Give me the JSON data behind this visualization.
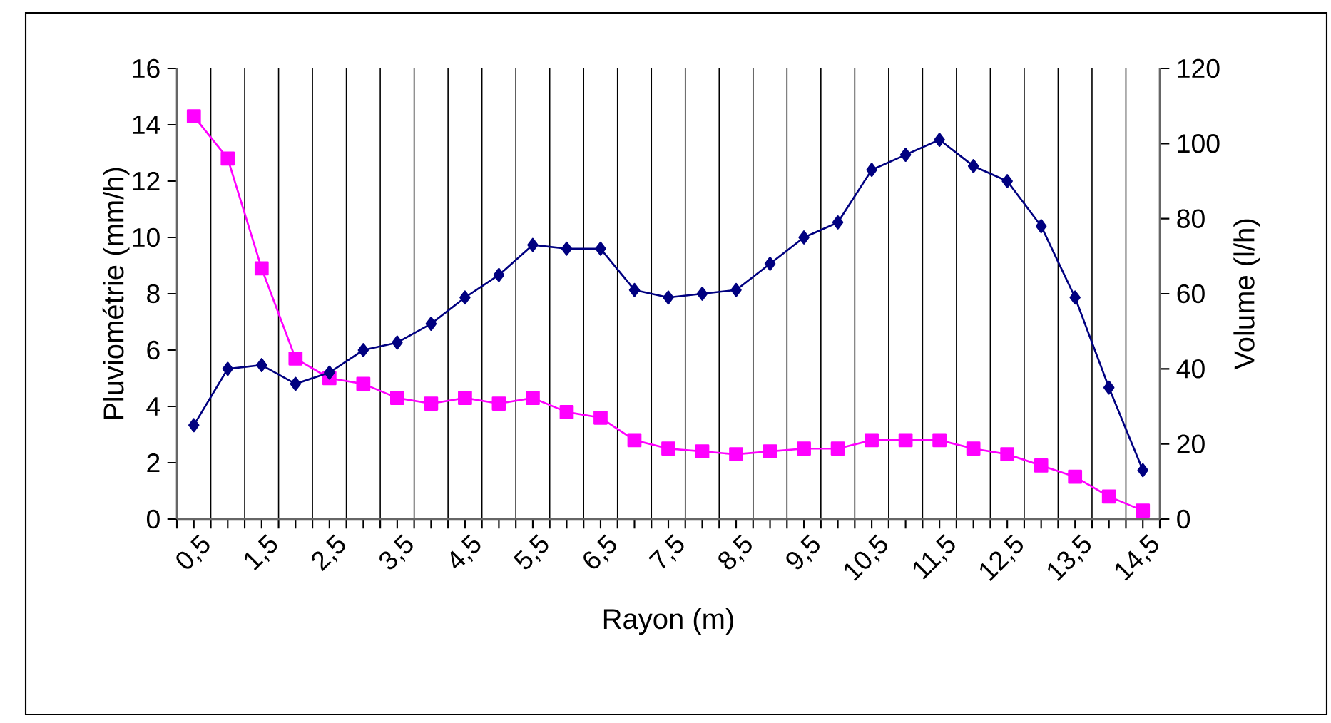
{
  "chart_data": {
    "type": "line",
    "xlabel": "Rayon (m)",
    "ylabel": "Pluviométrie (mm/h)",
    "y2label": "Volume (l/h)",
    "categories": [
      "0,5",
      null,
      "1,5",
      null,
      "2,5",
      null,
      "3,5",
      null,
      "4,5",
      null,
      "5,5",
      null,
      "6,5",
      null,
      "7,5",
      null,
      "8,5",
      null,
      "9,5",
      null,
      "10,5",
      null,
      "11,5",
      null,
      "12,5",
      null,
      "13,5",
      null,
      "14,5"
    ],
    "series": [
      {
        "color": "#ff00ff",
        "marker": "square",
        "axis": "y",
        "values": [
          14.3,
          12.8,
          8.9,
          5.7,
          5.0,
          4.8,
          4.3,
          4.1,
          4.3,
          4.1,
          4.3,
          3.8,
          3.6,
          2.8,
          2.5,
          2.4,
          2.3,
          2.4,
          2.5,
          2.5,
          2.8,
          2.8,
          2.8,
          2.5,
          2.3,
          1.9,
          1.5,
          0.8,
          0.3
        ]
      },
      {
        "color": "#000080",
        "marker": "diamond",
        "axis": "y2",
        "values": [
          25,
          40,
          41,
          36,
          39,
          45,
          47,
          52,
          59,
          65,
          73,
          72,
          72,
          61,
          59,
          60,
          61,
          68,
          75,
          79,
          93,
          97,
          101,
          94,
          90,
          78,
          59,
          35,
          13
        ]
      }
    ],
    "ylim": [
      0,
      16
    ],
    "yticks": [
      0,
      2,
      4,
      6,
      8,
      10,
      12,
      14,
      16
    ],
    "y2lim": [
      0,
      120
    ],
    "y2ticks": [
      0,
      20,
      40,
      60,
      80,
      100,
      120
    ],
    "grid": "x"
  }
}
